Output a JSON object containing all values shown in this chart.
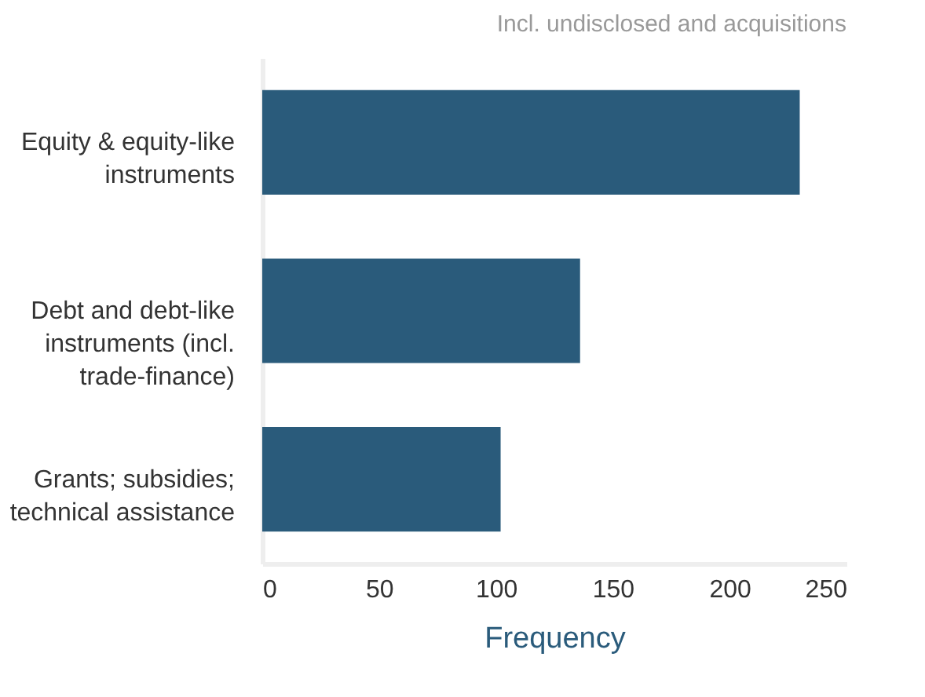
{
  "chart_data": {
    "type": "bar",
    "orientation": "horizontal",
    "subtitle": "Incl. undisclosed and acquisitions",
    "xlabel": "Frequency",
    "categories": [
      "Equity & equity-like instruments",
      "Debt and debt-like instruments (incl. trade-finance)",
      "Grants; subsidies; technical assistance"
    ],
    "values": [
      230,
      136,
      102
    ],
    "color": "#2a5b7b",
    "xlim": [
      0,
      250
    ],
    "xticks": [
      0,
      50,
      100,
      150,
      200,
      250
    ],
    "grid": false
  }
}
